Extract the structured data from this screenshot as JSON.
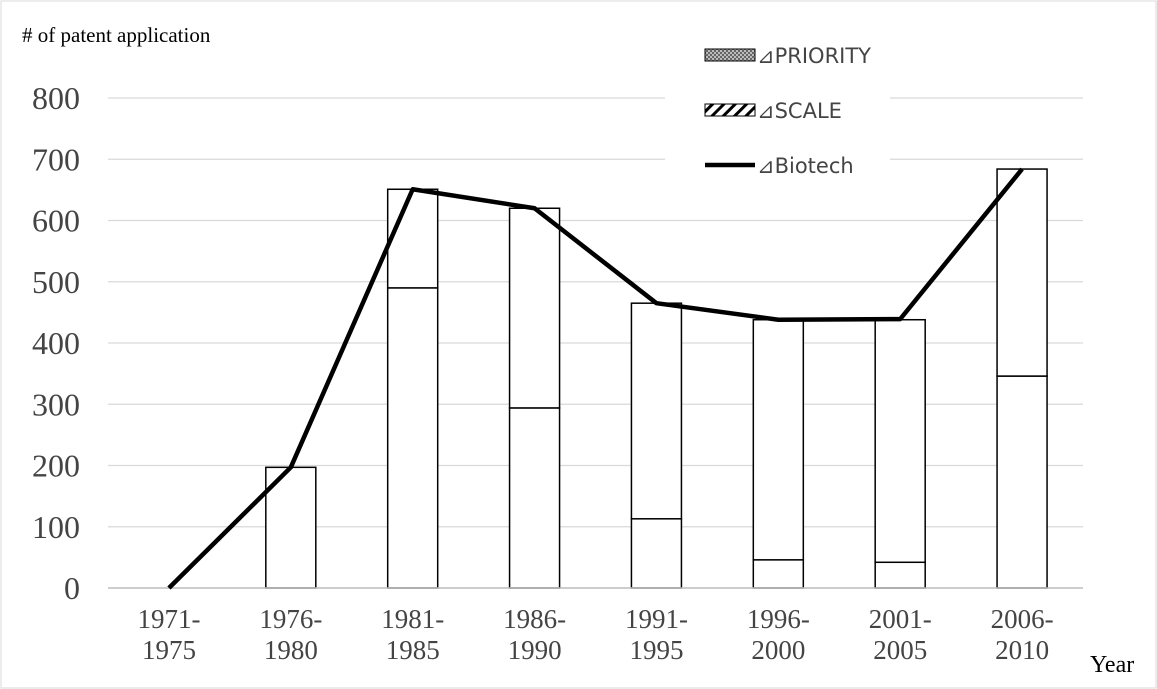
{
  "chart_data": {
    "type": "bar_line",
    "y_label": "# of patent application",
    "x_label": "Year",
    "categories": [
      "1971-\n1975",
      "1976-\n1980",
      "1981-\n1985",
      "1986-\n1990",
      "1991-\n1995",
      "1996-\n2000",
      "2001-\n2005",
      "2006-\n2010"
    ],
    "series": [
      {
        "name": "⊿PRIORITY",
        "kind": "bar",
        "color": "#ffffff",
        "values": [
          0,
          0,
          490,
          294,
          113,
          46,
          42,
          346
        ]
      },
      {
        "name": "⊿SCALE",
        "kind": "bar",
        "color": "#ffffff",
        "values": [
          0,
          197,
          161,
          326,
          352,
          392,
          396,
          338
        ]
      },
      {
        "name": "⊿Biotech",
        "kind": "line",
        "color": "#000000",
        "values": [
          0,
          197,
          651,
          620,
          465,
          438,
          439,
          684
        ]
      }
    ],
    "stacked": true,
    "ylim": [
      0,
      800
    ],
    "yticks": [
      0,
      100,
      200,
      300,
      400,
      500,
      600,
      700,
      800
    ],
    "grid": true,
    "legend": "top-right"
  }
}
